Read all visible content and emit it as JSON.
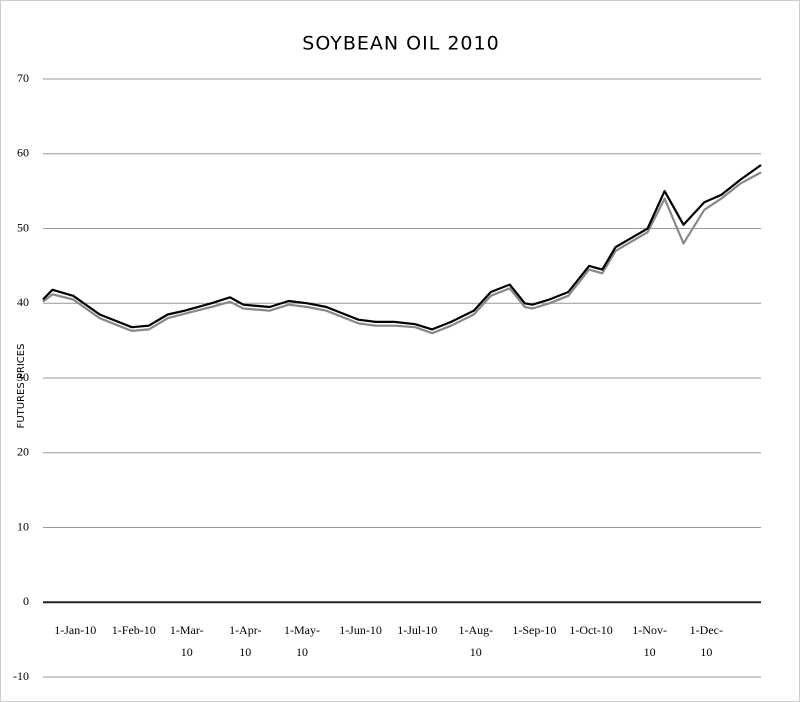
{
  "chart_data": {
    "type": "line",
    "title": "SOYBEAN OIL 2010",
    "y_label": "FUTURES PRICES",
    "x": [
      "2009-12-16",
      "2009-12-21",
      "2010-01-01",
      "2010-01-15",
      "2010-02-01",
      "2010-02-10",
      "2010-02-20",
      "2010-03-01",
      "2010-03-15",
      "2010-03-25",
      "2010-04-01",
      "2010-04-15",
      "2010-04-25",
      "2010-05-05",
      "2010-05-15",
      "2010-05-25",
      "2010-06-01",
      "2010-06-10",
      "2010-06-20",
      "2010-07-01",
      "2010-07-10",
      "2010-07-20",
      "2010-08-01",
      "2010-08-10",
      "2010-08-20",
      "2010-08-28",
      "2010-09-01",
      "2010-09-10",
      "2010-09-20",
      "2010-10-01",
      "2010-10-08",
      "2010-10-15",
      "2010-11-01",
      "2010-11-10",
      "2010-11-20",
      "2010-12-01",
      "2010-12-10",
      "2010-12-20",
      "2010-12-31"
    ],
    "series": [
      {
        "color": "#888888",
        "values": [
          40.2,
          41.2,
          40.5,
          38,
          36.3,
          36.5,
          38,
          38.6,
          39.5,
          40.2,
          39.3,
          39,
          39.8,
          39.5,
          39,
          38,
          37.3,
          37,
          37,
          36.8,
          36,
          37,
          38.5,
          41,
          42,
          39.5,
          39.3,
          40,
          41,
          44.5,
          44,
          47,
          49.5,
          54,
          48,
          52.5,
          54,
          56,
          57.5
        ]
      },
      {
        "color": "#000000",
        "values": [
          40.5,
          41.8,
          41,
          38.5,
          36.8,
          37,
          38.5,
          39,
          40,
          40.8,
          39.8,
          39.5,
          40.3,
          40,
          39.5,
          38.5,
          37.8,
          37.5,
          37.5,
          37.2,
          36.5,
          37.5,
          39,
          41.5,
          42.5,
          40,
          39.8,
          40.5,
          41.5,
          45,
          44.5,
          47.5,
          50,
          55,
          50.5,
          53.5,
          54.5,
          56.5,
          58.5
        ]
      }
    ],
    "xlim": [
      "2009-12-16",
      "2010-12-31"
    ],
    "xticks": [
      {
        "value": "2010-01-01",
        "label": "1-Jan-10"
      },
      {
        "value": "2010-02-01",
        "label": "1-Feb-10"
      },
      {
        "value": "2010-03-01",
        "label": "1-Mar-10"
      },
      {
        "value": "2010-04-01",
        "label": "1-Apr-10"
      },
      {
        "value": "2010-05-01",
        "label": "1-May-10"
      },
      {
        "value": "2010-06-01",
        "label": "1-Jun-10"
      },
      {
        "value": "2010-07-01",
        "label": "1-Jul-10"
      },
      {
        "value": "2010-08-01",
        "label": "1-Aug-10"
      },
      {
        "value": "2010-09-01",
        "label": "1-Sep-10"
      },
      {
        "value": "2010-10-01",
        "label": "1-Oct-10"
      },
      {
        "value": "2010-11-01",
        "label": "1-Nov-10"
      },
      {
        "value": "2010-12-01",
        "label": "1-Dec-10"
      }
    ],
    "ylim": [
      -10,
      70
    ],
    "yticks": [
      -10,
      0,
      10,
      20,
      30,
      40,
      50,
      60,
      70
    ],
    "grid": true
  }
}
